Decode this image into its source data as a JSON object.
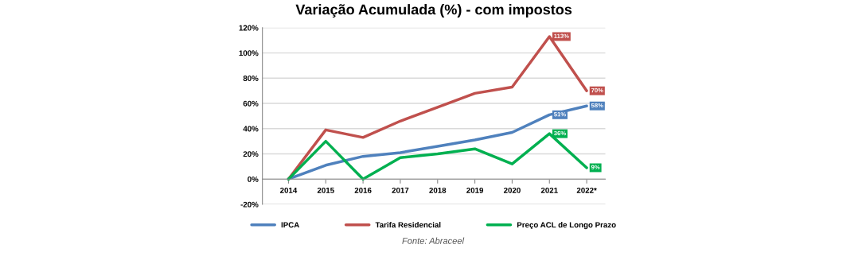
{
  "chart_data": {
    "type": "line",
    "title": "Variação Acumulada (%) - com impostos",
    "categories": [
      "2014",
      "2015",
      "2016",
      "2017",
      "2018",
      "2019",
      "2020",
      "2021",
      "2022*"
    ],
    "series": [
      {
        "name": "IPCA",
        "color": "#4f81bd",
        "values": [
          0,
          11,
          18,
          21,
          26,
          31,
          37,
          51,
          58
        ],
        "value_labels": [
          null,
          null,
          null,
          null,
          null,
          null,
          null,
          "51%",
          "58%"
        ]
      },
      {
        "name": "Tarifa Residencial",
        "color": "#c0504d",
        "values": [
          0,
          39,
          33,
          46,
          57,
          68,
          73,
          113,
          70
        ],
        "value_labels": [
          null,
          null,
          null,
          null,
          null,
          null,
          null,
          "113%",
          "70%"
        ]
      },
      {
        "name": "Preço ACL de Longo Prazo",
        "color": "#00b050",
        "values": [
          0,
          30,
          0,
          17,
          20,
          24,
          12,
          36,
          9
        ],
        "value_labels": [
          null,
          null,
          null,
          null,
          null,
          null,
          null,
          "36%",
          "9%"
        ]
      }
    ],
    "ylim": [
      -20,
      120
    ],
    "yticks": [
      {
        "value": -20,
        "label": "-20%"
      },
      {
        "value": 0,
        "label": "0%"
      },
      {
        "value": 20,
        "label": "20%"
      },
      {
        "value": 40,
        "label": "40%"
      },
      {
        "value": 60,
        "label": "60%"
      },
      {
        "value": 80,
        "label": "80%"
      },
      {
        "value": 100,
        "label": "100%"
      },
      {
        "value": 120,
        "label": "120%"
      }
    ],
    "grid": "y",
    "legend": "bottom",
    "marker": "none",
    "line_style": "solid",
    "annotations": [
      "Fonte: Abraceel"
    ]
  }
}
